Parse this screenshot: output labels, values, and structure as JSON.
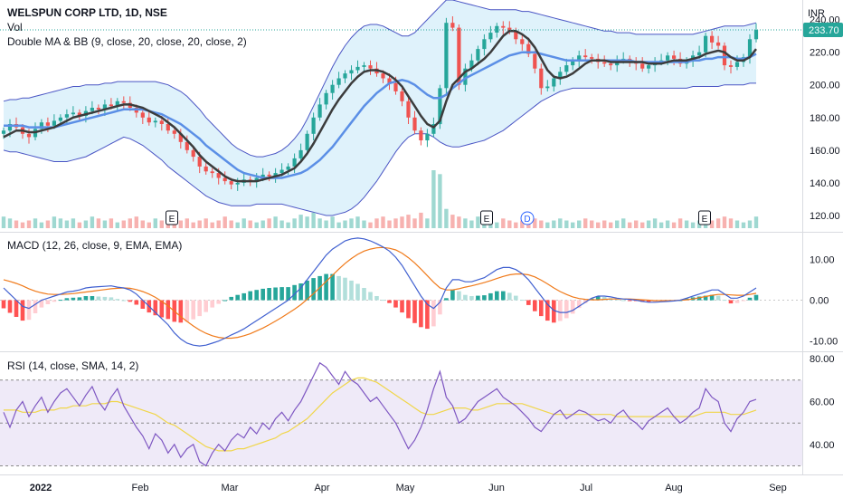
{
  "header": {
    "symbol": "WELSPUN CORP LTD, 1D, NSE",
    "currency": "INR",
    "vol_label": "Vol",
    "indicator_label": "Double MA & BB (9, close, 20, close, 20, close, 2)"
  },
  "colors": {
    "up": "#26a69a",
    "down": "#ef5350",
    "bb_line": "#4a55c4",
    "bb_fill": "#dff2fb",
    "ma_fast": "#3c3c3c",
    "ma_slow": "#5b8fe6",
    "macd_line": "#4060d0",
    "macd_signal": "#f07a1a",
    "rsi_line": "#7e57c2",
    "rsi_sma": "#f0d64a",
    "rsi_band": "#efeaf8",
    "price_badge": "#26a69a"
  },
  "price_badge": "233.70",
  "macd_label": "MACD (12, 26, close, 9, EMA, EMA)",
  "rsi_label": "RSI (14, close, SMA, 14, 2)",
  "x_axis": {
    "labels": [
      "2022",
      "Feb",
      "Mar",
      "Apr",
      "May",
      "Jun",
      "Jul",
      "Aug",
      "Sep"
    ],
    "bold_first": true
  },
  "chart_data": [
    {
      "type": "candlestick",
      "title": "WELSPUN CORP LTD, 1D, NSE",
      "ylabel": "INR",
      "yticks": [
        120,
        140,
        160,
        180,
        200,
        220,
        240
      ],
      "ylim": [
        110,
        252
      ],
      "x_labels": [
        "2022",
        "Feb",
        "Mar",
        "Apr",
        "May",
        "Jun",
        "Jul",
        "Aug",
        "Sep"
      ],
      "close": [
        172,
        176,
        174,
        170,
        168,
        173,
        177,
        175,
        178,
        180,
        182,
        183,
        181,
        184,
        186,
        185,
        188,
        187,
        190,
        189,
        186,
        183,
        180,
        177,
        178,
        176,
        172,
        170,
        165,
        160,
        156,
        150,
        147,
        146,
        143,
        141,
        139,
        140,
        142,
        141,
        143,
        145,
        144,
        146,
        148,
        150,
        155,
        160,
        170,
        180,
        188,
        195,
        200,
        204,
        207,
        209,
        211,
        212,
        210,
        207,
        204,
        201,
        196,
        190,
        180,
        172,
        166,
        170,
        176,
        198,
        238,
        235,
        200,
        210,
        215,
        222,
        228,
        232,
        236,
        235,
        233,
        228,
        225,
        219,
        210,
        198,
        199,
        204,
        208,
        212,
        215,
        218,
        217,
        216,
        214,
        213,
        212,
        215,
        216,
        214,
        213,
        210,
        212,
        214,
        215,
        218,
        216,
        213,
        215,
        218,
        220,
        230,
        226,
        224,
        212,
        211,
        214,
        217,
        228,
        233.7
      ],
      "ma_fast": [
        168,
        170,
        172,
        172,
        171,
        171,
        172,
        173,
        174,
        176,
        178,
        180,
        181,
        182,
        183,
        184,
        185,
        186,
        187,
        188,
        188,
        187,
        186,
        184,
        182,
        180,
        177,
        174,
        170,
        166,
        162,
        157,
        153,
        150,
        147,
        144,
        142,
        141,
        141,
        141,
        141,
        142,
        143,
        144,
        145,
        147,
        149,
        153,
        158,
        164,
        171,
        178,
        185,
        191,
        196,
        201,
        205,
        208,
        209,
        209,
        208,
        206,
        203,
        199,
        193,
        187,
        181,
        176,
        174,
        178,
        190,
        200,
        204,
        208,
        210,
        213,
        216,
        220,
        225,
        230,
        233,
        233,
        231,
        228,
        223,
        216,
        209,
        205,
        204,
        205,
        207,
        210,
        213,
        215,
        215,
        215,
        214,
        214,
        214,
        214,
        214,
        214,
        213,
        213,
        213,
        214,
        215,
        215,
        215,
        216,
        217,
        219,
        220,
        221,
        220,
        217,
        215,
        215,
        217,
        222
      ],
      "ma_slow": [
        175,
        175,
        175,
        175,
        174,
        174,
        174,
        174,
        174,
        175,
        176,
        177,
        178,
        179,
        180,
        181,
        182,
        183,
        184,
        185,
        185,
        185,
        185,
        184,
        183,
        182,
        180,
        178,
        176,
        173,
        170,
        167,
        163,
        160,
        157,
        154,
        151,
        148,
        146,
        145,
        144,
        143,
        143,
        143,
        143,
        144,
        145,
        146,
        148,
        151,
        154,
        158,
        162,
        167,
        172,
        177,
        182,
        187,
        191,
        195,
        198,
        201,
        202,
        203,
        202,
        200,
        197,
        194,
        192,
        192,
        194,
        198,
        201,
        204,
        206,
        208,
        210,
        212,
        214,
        216,
        218,
        219,
        220,
        220,
        220,
        219,
        218,
        217,
        216,
        215,
        215,
        215,
        215,
        215,
        215,
        215,
        215,
        215,
        215,
        215,
        214,
        214,
        214,
        214,
        214,
        214,
        214,
        214,
        214,
        215,
        215,
        216,
        216,
        217,
        217,
        217,
        216,
        216,
        217,
        219
      ],
      "bb_upper": [
        190,
        191,
        191,
        192,
        192,
        193,
        194,
        195,
        196,
        197,
        198,
        199,
        199,
        200,
        200,
        200,
        201,
        201,
        202,
        202,
        202,
        202,
        202,
        202,
        202,
        201,
        200,
        198,
        196,
        193,
        189,
        185,
        180,
        176,
        172,
        168,
        164,
        161,
        159,
        157,
        156,
        156,
        157,
        158,
        160,
        163,
        167,
        172,
        179,
        187,
        195,
        203,
        211,
        218,
        224,
        229,
        233,
        236,
        237,
        237,
        236,
        234,
        232,
        230,
        230,
        232,
        236,
        240,
        244,
        248,
        252,
        252,
        251,
        250,
        249,
        248,
        247,
        246,
        246,
        246,
        246,
        246,
        245,
        245,
        244,
        243,
        242,
        241,
        240,
        239,
        238,
        237,
        236,
        235,
        234,
        233,
        233,
        232,
        232,
        232,
        231,
        231,
        231,
        231,
        231,
        231,
        231,
        231,
        231,
        231,
        232,
        233,
        234,
        235,
        236,
        236,
        236,
        236,
        237,
        238
      ],
      "bb_lower": [
        160,
        159,
        159,
        158,
        157,
        156,
        155,
        154,
        153,
        153,
        153,
        154,
        155,
        156,
        158,
        160,
        162,
        164,
        166,
        168,
        167,
        165,
        163,
        160,
        157,
        154,
        150,
        147,
        144,
        141,
        138,
        135,
        132,
        130,
        128,
        127,
        126,
        126,
        126,
        126,
        127,
        127,
        127,
        127,
        127,
        126,
        125,
        124,
        123,
        122,
        121,
        120,
        120,
        121,
        122,
        124,
        127,
        131,
        136,
        141,
        147,
        153,
        159,
        164,
        168,
        170,
        170,
        170,
        168,
        165,
        163,
        162,
        162,
        163,
        164,
        165,
        166,
        168,
        170,
        172,
        175,
        178,
        181,
        184,
        187,
        190,
        192,
        194,
        196,
        197,
        198,
        198,
        198,
        198,
        198,
        198,
        198,
        198,
        198,
        198,
        198,
        198,
        198,
        198,
        198,
        198,
        198,
        198,
        198,
        199,
        199,
        199,
        199,
        199,
        200,
        200,
        200,
        200,
        201,
        201
      ],
      "volume": [
        6,
        5,
        4,
        3,
        4,
        5,
        3,
        4,
        6,
        5,
        4,
        5,
        3,
        4,
        6,
        5,
        4,
        5,
        3,
        4,
        5,
        6,
        4,
        3,
        5,
        4,
        3,
        6,
        4,
        5,
        3,
        4,
        5,
        3,
        4,
        6,
        4,
        3,
        5,
        4,
        3,
        4,
        5,
        6,
        4,
        3,
        5,
        7,
        6,
        8,
        5,
        4,
        6,
        3,
        4,
        5,
        6,
        4,
        3,
        5,
        6,
        4,
        5,
        6,
        7,
        5,
        8,
        5,
        30,
        28,
        10,
        7,
        6,
        5,
        4,
        6,
        5,
        4,
        3,
        5,
        4,
        3,
        4,
        6,
        5,
        4,
        3,
        4,
        5,
        4,
        3,
        4,
        5,
        4,
        3,
        4,
        3,
        4,
        5,
        3,
        4,
        3,
        4,
        5,
        3,
        4,
        3,
        5,
        4,
        3,
        4,
        6,
        4,
        5,
        6,
        5,
        4,
        3,
        4,
        6
      ],
      "event_markers": [
        "E",
        "E",
        "D",
        "E"
      ]
    },
    {
      "type": "line",
      "title": "MACD (12, 26, close, 9, EMA, EMA)",
      "yticks": [
        10.0,
        0.0,
        -10.0
      ],
      "ylim": [
        -12.5,
        16.5
      ],
      "macd": [
        3,
        1.5,
        0,
        -1.5,
        -2,
        -1,
        0,
        0.5,
        1,
        1.5,
        2,
        2.2,
        2.5,
        3,
        3.2,
        3.3,
        3.4,
        3.5,
        3.2,
        3,
        2.5,
        1.5,
        0,
        -1.5,
        -3,
        -4.5,
        -6,
        -8,
        -9.5,
        -10.5,
        -11,
        -11.2,
        -11,
        -10.5,
        -10,
        -9.3,
        -8.5,
        -7.8,
        -7,
        -6,
        -5,
        -4,
        -3,
        -2,
        -1,
        0,
        1.5,
        3,
        5,
        7,
        9,
        11,
        12.5,
        13.5,
        14.5,
        15,
        15.2,
        15,
        14.5,
        13.8,
        13,
        12,
        10.5,
        8.5,
        6,
        3.5,
        1,
        -1,
        -2,
        -0.5,
        3,
        5,
        5,
        4.5,
        4.5,
        5,
        5.5,
        6.5,
        7.5,
        8,
        8,
        7.5,
        6.5,
        5,
        3,
        1,
        -1,
        -2.5,
        -3,
        -3,
        -2.5,
        -1.5,
        -0.5,
        0.5,
        1,
        1,
        0.8,
        0.5,
        0.3,
        0.2,
        0,
        -0.3,
        -0.5,
        -0.5,
        -0.4,
        -0.3,
        -0.2,
        0,
        0.5,
        1,
        1.5,
        2,
        2.5,
        2.5,
        1.5,
        0.5,
        0.5,
        1,
        2,
        3
      ],
      "signal": [
        5,
        4.6,
        4.1,
        3.5,
        2.8,
        2.2,
        1.8,
        1.5,
        1.4,
        1.4,
        1.5,
        1.6,
        1.8,
        2,
        2.2,
        2.4,
        2.6,
        2.8,
        2.9,
        3,
        2.9,
        2.6,
        2.1,
        1.5,
        0.7,
        -0.3,
        -1.4,
        -2.7,
        -4,
        -5.2,
        -6.3,
        -7.3,
        -8.1,
        -8.7,
        -9.1,
        -9.3,
        -9.3,
        -9.1,
        -8.7,
        -8.2,
        -7.5,
        -6.8,
        -6,
        -5.1,
        -4.2,
        -3.2,
        -2.2,
        -1.1,
        0.2,
        1.6,
        3.1,
        4.6,
        6.1,
        7.6,
        9,
        10.2,
        11.2,
        12,
        12.5,
        12.8,
        12.9,
        12.7,
        12.3,
        11.5,
        10.4,
        9.1,
        7.6,
        6,
        4.4,
        3,
        2.5,
        2.5,
        2.8,
        3.2,
        3.5,
        3.9,
        4.3,
        4.8,
        5.3,
        5.8,
        6.2,
        6.4,
        6.4,
        6.2,
        5.7,
        4.9,
        4,
        3,
        2.1,
        1.4,
        0.8,
        0.4,
        0.2,
        0.1,
        0.1,
        0.2,
        0.3,
        0.3,
        0.3,
        0.3,
        0.2,
        0.1,
        0,
        -0.1,
        -0.1,
        -0.1,
        -0.1,
        0,
        0.1,
        0.3,
        0.6,
        0.9,
        1.2,
        1.4,
        1.4,
        1.3,
        1.2,
        1.2,
        1.4,
        1.7
      ]
    },
    {
      "type": "line",
      "title": "RSI (14, close, SMA, 14, 2)",
      "yticks": [
        80.0,
        60.0,
        40.0
      ],
      "ylim": [
        26,
        83
      ],
      "bands": [
        70,
        50,
        30
      ],
      "rsi": [
        55,
        48,
        56,
        60,
        53,
        58,
        62,
        55,
        60,
        64,
        66,
        62,
        58,
        63,
        67,
        60,
        56,
        62,
        66,
        58,
        53,
        48,
        44,
        38,
        45,
        42,
        36,
        40,
        34,
        38,
        40,
        32,
        30,
        36,
        40,
        37,
        42,
        45,
        43,
        48,
        45,
        50,
        47,
        52,
        55,
        51,
        56,
        60,
        66,
        72,
        78,
        76,
        72,
        68,
        74,
        70,
        68,
        64,
        60,
        62,
        58,
        54,
        50,
        44,
        38,
        42,
        48,
        56,
        66,
        74,
        62,
        58,
        50,
        52,
        56,
        60,
        62,
        64,
        66,
        62,
        60,
        58,
        55,
        52,
        48,
        46,
        50,
        54,
        56,
        52,
        54,
        56,
        55,
        53,
        51,
        52,
        50,
        54,
        56,
        52,
        50,
        47,
        51,
        53,
        55,
        57,
        53,
        50,
        52,
        55,
        57,
        66,
        62,
        60,
        50,
        46,
        52,
        55,
        60,
        61
      ],
      "rsi_sma": [
        56,
        56,
        56,
        55,
        55,
        55,
        56,
        56,
        56,
        57,
        57,
        58,
        58,
        58,
        59,
        59,
        59,
        60,
        60,
        59,
        58,
        57,
        56,
        55,
        54,
        52,
        50,
        49,
        47,
        45,
        43,
        41,
        39,
        38,
        37,
        37,
        37,
        38,
        38,
        39,
        40,
        41,
        42,
        43,
        45,
        46,
        48,
        50,
        52,
        55,
        58,
        61,
        64,
        66,
        68,
        70,
        71,
        71,
        70,
        69,
        67,
        65,
        63,
        61,
        59,
        57,
        55,
        54,
        54,
        55,
        56,
        57,
        57,
        57,
        56,
        56,
        57,
        58,
        59,
        59,
        59,
        59,
        59,
        58,
        57,
        56,
        55,
        54,
        54,
        54,
        54,
        54,
        54,
        54,
        54,
        54,
        54,
        53,
        53,
        53,
        53,
        53,
        53,
        53,
        53,
        53,
        53,
        53,
        53,
        53,
        54,
        55,
        55,
        55,
        55,
        54,
        54,
        54,
        55,
        56
      ]
    }
  ]
}
